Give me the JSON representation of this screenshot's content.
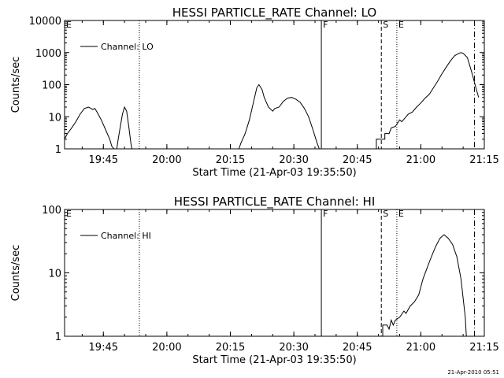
{
  "footer": {
    "timestamp": "21-Apr-2010 05:51"
  },
  "chart_data": [
    {
      "type": "line",
      "title": "HESSI PARTICLE_RATE Channel: LO",
      "xlabel": "Start Time (21-Apr-03 19:35:50)",
      "ylabel": "Counts/sec",
      "y_scale": "log",
      "ylim": [
        1,
        10000
      ],
      "xlim": [
        "19:35:50",
        "21:15:00"
      ],
      "x_ticks": [
        "19:45",
        "20:00",
        "20:15",
        "20:30",
        "20:45",
        "21:00",
        "21:15"
      ],
      "y_ticks": [
        "1",
        "10",
        "100",
        "1000",
        "10000"
      ],
      "legend": {
        "position": "top-left",
        "entries": [
          "Channel: LO"
        ]
      },
      "markers": [
        {
          "label": "E",
          "time": "19:35:50",
          "style": "dotted"
        },
        {
          "label": "",
          "time": "19:53:30",
          "style": "dotted"
        },
        {
          "label": "F",
          "time": "20:36:30",
          "style": "solid"
        },
        {
          "label": "S",
          "time": "20:50:40",
          "style": "dashed"
        },
        {
          "label": "E",
          "time": "20:54:20",
          "style": "dotted"
        },
        {
          "label": "",
          "time": "21:12:40",
          "style": "dashdot"
        }
      ],
      "series": [
        {
          "name": "Channel: LO",
          "segments": [
            [
              [
                "19:35:50",
                2
              ],
              [
                "19:36:30",
                3
              ],
              [
                "19:37:30",
                4.5
              ],
              [
                "19:38:30",
                7
              ],
              [
                "19:39:30",
                12
              ],
              [
                "19:40:30",
                18
              ],
              [
                "19:41:30",
                20
              ],
              [
                "19:42:30",
                17
              ],
              [
                "19:43:00",
                18
              ],
              [
                "19:43:30",
                14
              ],
              [
                "19:44:30",
                8
              ],
              [
                "19:45:30",
                4
              ],
              [
                "19:46:30",
                2
              ],
              [
                "19:47:00",
                1.2
              ],
              [
                "19:47:30",
                1
              ]
            ],
            [
              [
                "19:48:10",
                1
              ],
              [
                "19:48:30",
                2
              ],
              [
                "19:49:00",
                5
              ],
              [
                "19:49:30",
                12
              ],
              [
                "19:50:00",
                20
              ],
              [
                "19:50:30",
                15
              ],
              [
                "19:51:00",
                5
              ],
              [
                "19:51:30",
                1.5
              ],
              [
                "19:51:45",
                1
              ]
            ],
            [
              [
                "20:17:00",
                1
              ],
              [
                "20:17:30",
                1.5
              ],
              [
                "20:18:30",
                3
              ],
              [
                "20:19:30",
                8
              ],
              [
                "20:20:30",
                30
              ],
              [
                "20:21:15",
                80
              ],
              [
                "20:21:45",
                100
              ],
              [
                "20:22:30",
                70
              ],
              [
                "20:23:00",
                40
              ],
              [
                "20:24:00",
                20
              ],
              [
                "20:25:00",
                15
              ],
              [
                "20:25:30",
                18
              ],
              [
                "20:26:30",
                20
              ],
              [
                "20:27:30",
                30
              ],
              [
                "20:28:30",
                38
              ],
              [
                "20:29:30",
                40
              ],
              [
                "20:30:30",
                35
              ],
              [
                "20:31:30",
                28
              ],
              [
                "20:32:30",
                18
              ],
              [
                "20:33:30",
                10
              ],
              [
                "20:34:30",
                4
              ],
              [
                "20:35:30",
                1.5
              ],
              [
                "20:36:00",
                1
              ]
            ],
            [
              [
                "20:49:30",
                1
              ],
              [
                "20:49:30",
                2
              ],
              [
                "20:51:30",
                2
              ],
              [
                "20:51:30",
                3
              ],
              [
                "20:52:30",
                3
              ],
              [
                "20:53:00",
                4.5
              ],
              [
                "20:54:00",
                5
              ],
              [
                "20:55:00",
                8
              ],
              [
                "20:55:30",
                7
              ],
              [
                "20:56:30",
                10
              ],
              [
                "20:57:00",
                12
              ],
              [
                "20:58:00",
                14
              ],
              [
                "20:59:00",
                20
              ],
              [
                "21:00:00",
                27
              ],
              [
                "21:01:00",
                38
              ],
              [
                "21:02:00",
                50
              ],
              [
                "21:03:00",
                80
              ],
              [
                "21:04:00",
                130
              ],
              [
                "21:05:00",
                220
              ],
              [
                "21:06:00",
                350
              ],
              [
                "21:07:00",
                550
              ],
              [
                "21:08:00",
                800
              ],
              [
                "21:09:00",
                950
              ],
              [
                "21:09:30",
                1000
              ],
              [
                "21:10:00",
                950
              ],
              [
                "21:11:00",
                700
              ],
              [
                "21:12:00",
                250
              ],
              [
                "21:13:00",
                80
              ],
              [
                "21:13:40",
                40
              ]
            ]
          ]
        }
      ]
    },
    {
      "type": "line",
      "title": "HESSI PARTICLE_RATE Channel: HI",
      "xlabel": "Start Time (21-Apr-03 19:35:50)",
      "ylabel": "Counts/sec",
      "y_scale": "log",
      "ylim": [
        1,
        100
      ],
      "xlim": [
        "19:35:50",
        "21:15:00"
      ],
      "x_ticks": [
        "19:45",
        "20:00",
        "20:15",
        "20:30",
        "20:45",
        "21:00",
        "21:15"
      ],
      "y_ticks": [
        "1",
        "10",
        "100"
      ],
      "legend": {
        "position": "top-left",
        "entries": [
          "Channel: HI"
        ]
      },
      "markers": [
        {
          "label": "E",
          "time": "19:35:50",
          "style": "dotted"
        },
        {
          "label": "",
          "time": "19:53:30",
          "style": "dotted"
        },
        {
          "label": "F",
          "time": "20:36:30",
          "style": "solid"
        },
        {
          "label": "S",
          "time": "20:50:40",
          "style": "dashed"
        },
        {
          "label": "E",
          "time": "20:54:20",
          "style": "dotted"
        },
        {
          "label": "",
          "time": "21:12:40",
          "style": "dashdot"
        }
      ],
      "series": [
        {
          "name": "Channel: HI",
          "segments": [
            [
              [
                "20:51:00",
                1
              ],
              [
                "20:51:00",
                1.5
              ],
              [
                "20:52:00",
                1.5
              ],
              [
                "20:52:30",
                1.3
              ],
              [
                "20:53:00",
                1.8
              ],
              [
                "20:53:30",
                1.5
              ],
              [
                "20:54:00",
                1.8
              ],
              [
                "20:55:00",
                2
              ],
              [
                "20:56:00",
                2.5
              ],
              [
                "20:56:30",
                2.3
              ],
              [
                "20:57:30",
                3
              ],
              [
                "20:58:30",
                3.5
              ],
              [
                "20:59:30",
                4.5
              ],
              [
                "21:00:00",
                6
              ],
              [
                "21:00:30",
                8
              ],
              [
                "21:01:30",
                12
              ],
              [
                "21:02:30",
                18
              ],
              [
                "21:03:30",
                26
              ],
              [
                "21:04:30",
                35
              ],
              [
                "21:05:30",
                40
              ],
              [
                "21:06:30",
                35
              ],
              [
                "21:07:30",
                28
              ],
              [
                "21:08:30",
                18
              ],
              [
                "21:09:30",
                8
              ],
              [
                "21:10:00",
                4
              ],
              [
                "21:10:30",
                2
              ],
              [
                "21:10:45",
                1
              ]
            ]
          ]
        }
      ]
    }
  ]
}
